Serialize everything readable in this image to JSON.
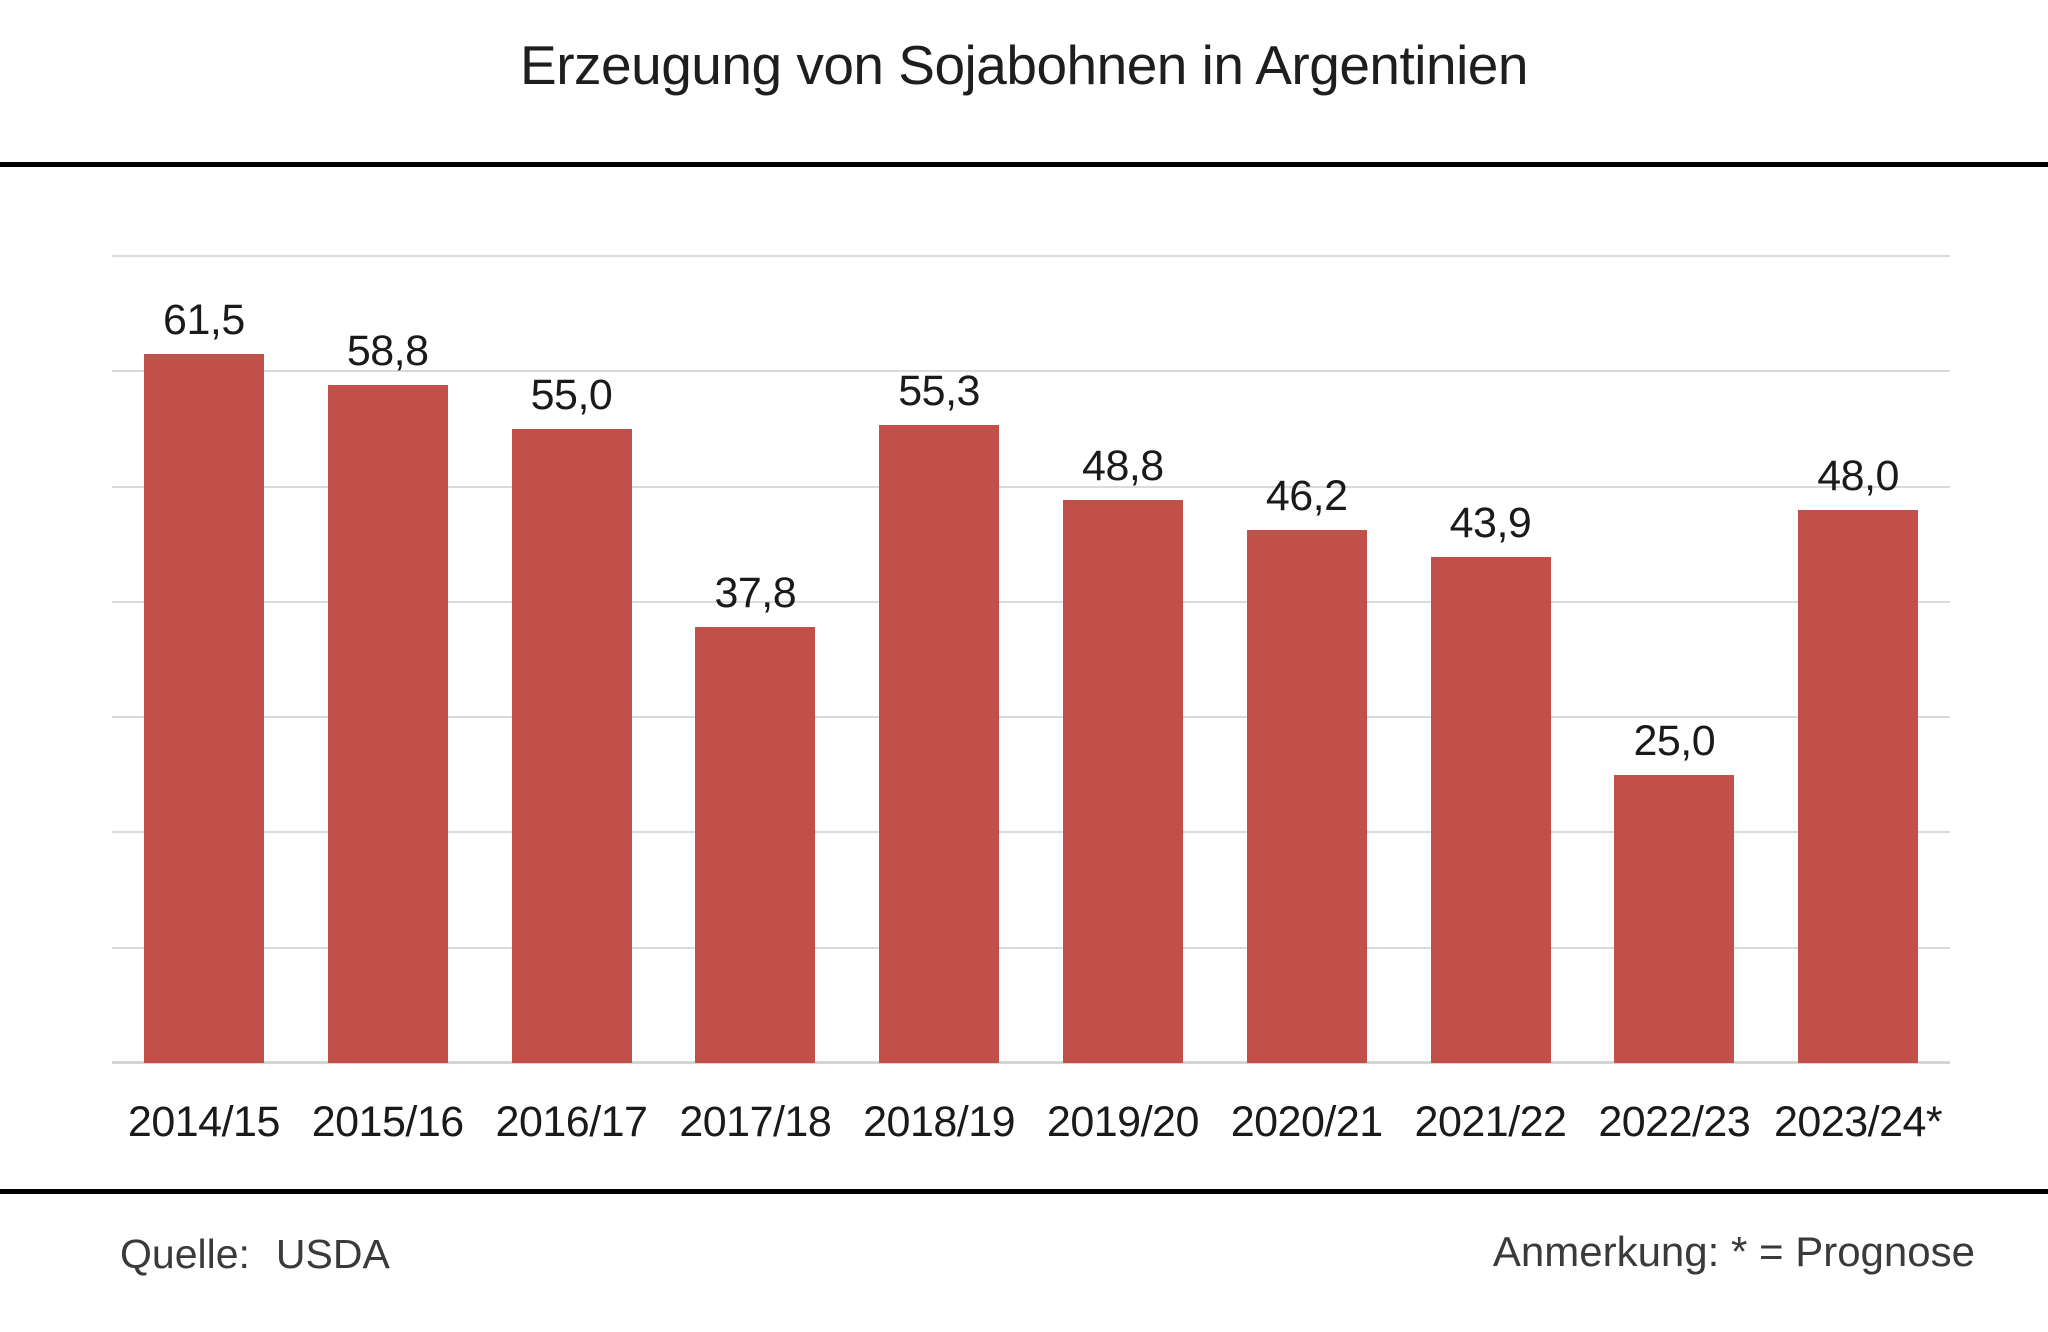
{
  "title": "Erzeugung von Sojabohnen in Argentinien",
  "chart_data": {
    "type": "bar",
    "title": "Erzeugung von Sojabohnen in Argentinien",
    "categories": [
      "2014/15",
      "2015/16",
      "2016/17",
      "2017/18",
      "2018/19",
      "2019/20",
      "2020/21",
      "2021/22",
      "2022/23",
      "2023/24*"
    ],
    "values": [
      61.5,
      58.8,
      55.0,
      37.8,
      55.3,
      48.8,
      46.2,
      43.9,
      25.0,
      48.0
    ],
    "value_labels": [
      "61,5",
      "58,8",
      "55,0",
      "37,8",
      "55,3",
      "48,8",
      "46,2",
      "43,9",
      "25,0",
      "48,0"
    ],
    "xlabel": "",
    "ylabel": "",
    "ylim": [
      0,
      70
    ],
    "gridline_values": [
      10,
      20,
      30,
      40,
      50,
      60,
      70
    ],
    "grid": true,
    "legend": false,
    "bar_color": "#c2504a",
    "gridline_color": "#dadada",
    "baseline_color": "#d5d5d5"
  },
  "footer": {
    "source_label": "Quelle:",
    "source_value": "USDA",
    "note": "Anmerkung: * = Prognose"
  }
}
